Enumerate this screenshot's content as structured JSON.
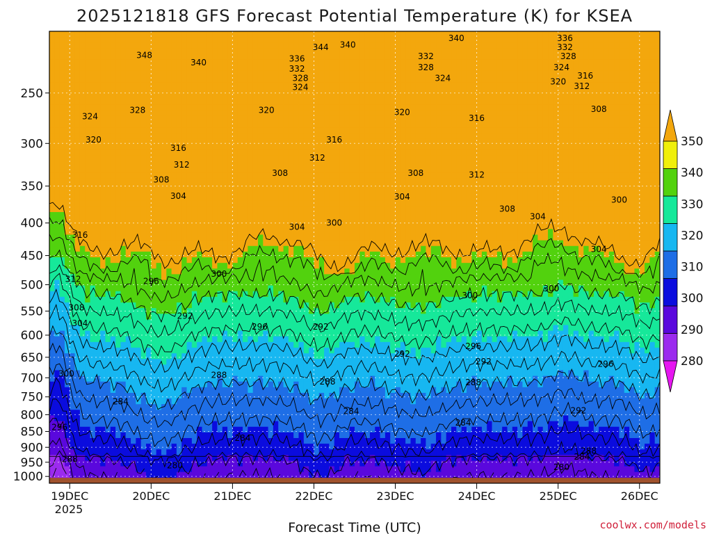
{
  "chart_data": {
    "type": "heatmap",
    "title": "2025121818 GFS Forecast Potential Temperature (K) for KSEA",
    "xlabel": "Forecast Time (UTC)",
    "ylabel": "",
    "credit": "coolwx.com/models",
    "x_ticks": [
      "19DEC",
      "20DEC",
      "21DEC",
      "22DEC",
      "23DEC",
      "24DEC",
      "25DEC",
      "26DEC"
    ],
    "x_tick_hours": [
      6,
      30,
      54,
      78,
      102,
      126,
      150,
      174
    ],
    "x_year_label": "2025",
    "x_range_hours": [
      0,
      180
    ],
    "y_ticks": [
      250,
      300,
      350,
      400,
      450,
      500,
      550,
      600,
      650,
      700,
      750,
      800,
      850,
      900,
      950,
      1000
    ],
    "y_range_hpa": [
      200,
      1025
    ],
    "y_scale": "log-pressure",
    "grid": "dotted",
    "levels_k": [
      280,
      290,
      300,
      310,
      320,
      330,
      340,
      350
    ],
    "colorbar": {
      "labels": [
        "280",
        "290",
        "300",
        "310",
        "320",
        "330",
        "340",
        "350"
      ],
      "colors": [
        "#9b2bee",
        "#5a08dd",
        "#0b0cde",
        "#1e6ee6",
        "#17b7f1",
        "#16e89a",
        "#52d20e",
        "#f0ef0a"
      ],
      "under_color": "#e616f0",
      "over_color": "#f3a70d"
    },
    "ground_color": "#a0522d",
    "contour_interval_k": 4,
    "contour_labels": [
      {
        "value": "348",
        "hour": 28,
        "p": 218
      },
      {
        "value": "340",
        "hour": 44,
        "p": 224
      },
      {
        "value": "344",
        "hour": 80,
        "p": 212
      },
      {
        "value": "340",
        "hour": 88,
        "p": 210
      },
      {
        "value": "336",
        "hour": 73,
        "p": 221
      },
      {
        "value": "332",
        "hour": 73,
        "p": 229
      },
      {
        "value": "328",
        "hour": 74,
        "p": 237
      },
      {
        "value": "324",
        "hour": 74,
        "p": 245
      },
      {
        "value": "340",
        "hour": 120,
        "p": 205
      },
      {
        "value": "332",
        "hour": 111,
        "p": 219
      },
      {
        "value": "328",
        "hour": 111,
        "p": 228
      },
      {
        "value": "324",
        "hour": 116,
        "p": 237
      },
      {
        "value": "336",
        "hour": 152,
        "p": 205
      },
      {
        "value": "332",
        "hour": 152,
        "p": 212
      },
      {
        "value": "328",
        "hour": 153,
        "p": 219
      },
      {
        "value": "324",
        "hour": 151,
        "p": 228
      },
      {
        "value": "316",
        "hour": 158,
        "p": 235
      },
      {
        "value": "320",
        "hour": 150,
        "p": 240
      },
      {
        "value": "312",
        "hour": 157,
        "p": 244
      },
      {
        "value": "324",
        "hour": 12,
        "p": 272
      },
      {
        "value": "328",
        "hour": 26,
        "p": 266
      },
      {
        "value": "320",
        "hour": 64,
        "p": 266
      },
      {
        "value": "320",
        "hour": 104,
        "p": 268
      },
      {
        "value": "316",
        "hour": 126,
        "p": 274
      },
      {
        "value": "308",
        "hour": 162,
        "p": 265
      },
      {
        "value": "320",
        "hour": 13,
        "p": 296
      },
      {
        "value": "316",
        "hour": 38,
        "p": 305
      },
      {
        "value": "316",
        "hour": 84,
        "p": 296
      },
      {
        "value": "312",
        "hour": 79,
        "p": 316
      },
      {
        "value": "312",
        "hour": 39,
        "p": 324
      },
      {
        "value": "308",
        "hour": 33,
        "p": 342
      },
      {
        "value": "308",
        "hour": 68,
        "p": 334
      },
      {
        "value": "308",
        "hour": 108,
        "p": 334
      },
      {
        "value": "312",
        "hour": 126,
        "p": 336
      },
      {
        "value": "304",
        "hour": 38,
        "p": 363
      },
      {
        "value": "304",
        "hour": 104,
        "p": 364
      },
      {
        "value": "308",
        "hour": 135,
        "p": 380
      },
      {
        "value": "304",
        "hour": 144,
        "p": 391
      },
      {
        "value": "300",
        "hour": 168,
        "p": 368
      },
      {
        "value": "316",
        "hour": 9,
        "p": 418
      },
      {
        "value": "304",
        "hour": 73,
        "p": 406
      },
      {
        "value": "300",
        "hour": 84,
        "p": 400
      },
      {
        "value": "304",
        "hour": 162,
        "p": 440
      },
      {
        "value": "312",
        "hour": 7,
        "p": 490
      },
      {
        "value": "300",
        "hour": 50,
        "p": 481
      },
      {
        "value": "296",
        "hour": 30,
        "p": 494
      },
      {
        "value": "300",
        "hour": 124,
        "p": 520
      },
      {
        "value": "300",
        "hour": 148,
        "p": 507
      },
      {
        "value": "308",
        "hour": 8,
        "p": 543
      },
      {
        "value": "304",
        "hour": 9,
        "p": 575
      },
      {
        "value": "292",
        "hour": 40,
        "p": 560
      },
      {
        "value": "296",
        "hour": 62,
        "p": 582
      },
      {
        "value": "292",
        "hour": 80,
        "p": 582
      },
      {
        "value": "296",
        "hour": 125,
        "p": 625
      },
      {
        "value": "292",
        "hour": 104,
        "p": 642
      },
      {
        "value": "292",
        "hour": 128,
        "p": 660
      },
      {
        "value": "296",
        "hour": 164,
        "p": 666
      },
      {
        "value": "300",
        "hour": 5,
        "p": 690
      },
      {
        "value": "288",
        "hour": 50,
        "p": 693
      },
      {
        "value": "288",
        "hour": 82,
        "p": 710
      },
      {
        "value": "288",
        "hour": 125,
        "p": 712
      },
      {
        "value": "284",
        "hour": 21,
        "p": 763
      },
      {
        "value": "284",
        "hour": 89,
        "p": 790
      },
      {
        "value": "292",
        "hour": 156,
        "p": 788
      },
      {
        "value": "284",
        "hour": 122,
        "p": 824
      },
      {
        "value": "296",
        "hour": 3,
        "p": 837
      },
      {
        "value": "284",
        "hour": 57,
        "p": 870
      },
      {
        "value": "288",
        "hour": 159,
        "p": 912
      },
      {
        "value": "284",
        "hour": 157,
        "p": 932
      },
      {
        "value": "288",
        "hour": 6,
        "p": 940
      },
      {
        "value": "280",
        "hour": 37,
        "p": 961
      },
      {
        "value": "280",
        "hour": 151,
        "p": 967
      }
    ]
  }
}
